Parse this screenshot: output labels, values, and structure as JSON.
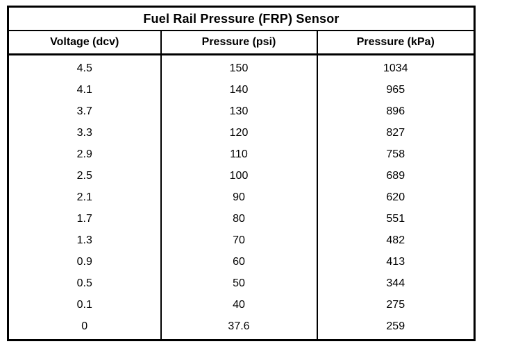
{
  "table": {
    "title": "Fuel Rail Pressure (FRP) Sensor",
    "columns": [
      "Voltage (dcv)",
      "Pressure (psi)",
      "Pressure (kPa)"
    ],
    "rows": [
      [
        "4.5",
        "150",
        "1034"
      ],
      [
        "4.1",
        "140",
        "965"
      ],
      [
        "3.7",
        "130",
        "896"
      ],
      [
        "3.3",
        "120",
        "827"
      ],
      [
        "2.9",
        "110",
        "758"
      ],
      [
        "2.5",
        "100",
        "689"
      ],
      [
        "2.1",
        "90",
        "620"
      ],
      [
        "1.7",
        "80",
        "551"
      ],
      [
        "1.3",
        "70",
        "482"
      ],
      [
        "0.9",
        "60",
        "413"
      ],
      [
        "0.5",
        "50",
        "344"
      ],
      [
        "0.1",
        "40",
        "275"
      ],
      [
        "0",
        "37.6",
        "259"
      ]
    ]
  }
}
